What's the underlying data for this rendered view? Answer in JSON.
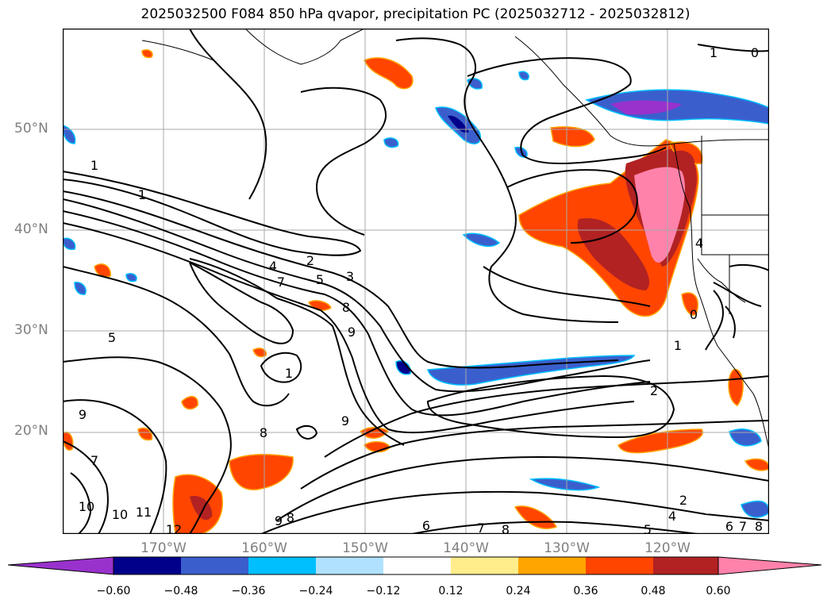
{
  "title": "2025032500 F084 850 hPa qvapor, precipitation PC (2025032712 - 2025032812)",
  "lat_labels": [
    "50°N",
    "40°N",
    "30°N",
    "20°N"
  ],
  "lon_labels": [
    "170°W",
    "160°W",
    "150°W",
    "140°W",
    "130°W",
    "120°W"
  ],
  "colorbar": {
    "ticks": [
      "−0.60",
      "−0.48",
      "−0.36",
      "−0.24",
      "−0.12",
      "0.12",
      "0.24",
      "0.36",
      "0.48",
      "0.60"
    ],
    "colors": [
      "#9932cc",
      "#00008b",
      "#3a5fcd",
      "#00bfff",
      "#b0e2ff",
      "#ffffff",
      "#ffec8b",
      "#ffa500",
      "#ff4500",
      "#b22222",
      "#ff82ab"
    ]
  },
  "contour_labels": [
    "1",
    "0",
    "1",
    "1",
    "4",
    "2",
    "5",
    "3",
    "7",
    "8",
    "9",
    "5",
    "1",
    "2",
    "1",
    "0",
    "4",
    "9",
    "9",
    "8",
    "7",
    "10",
    "10",
    "11",
    "12",
    "9",
    "8",
    "6",
    "7",
    "8",
    "5",
    "2",
    "4",
    "6",
    "7",
    "8"
  ]
}
